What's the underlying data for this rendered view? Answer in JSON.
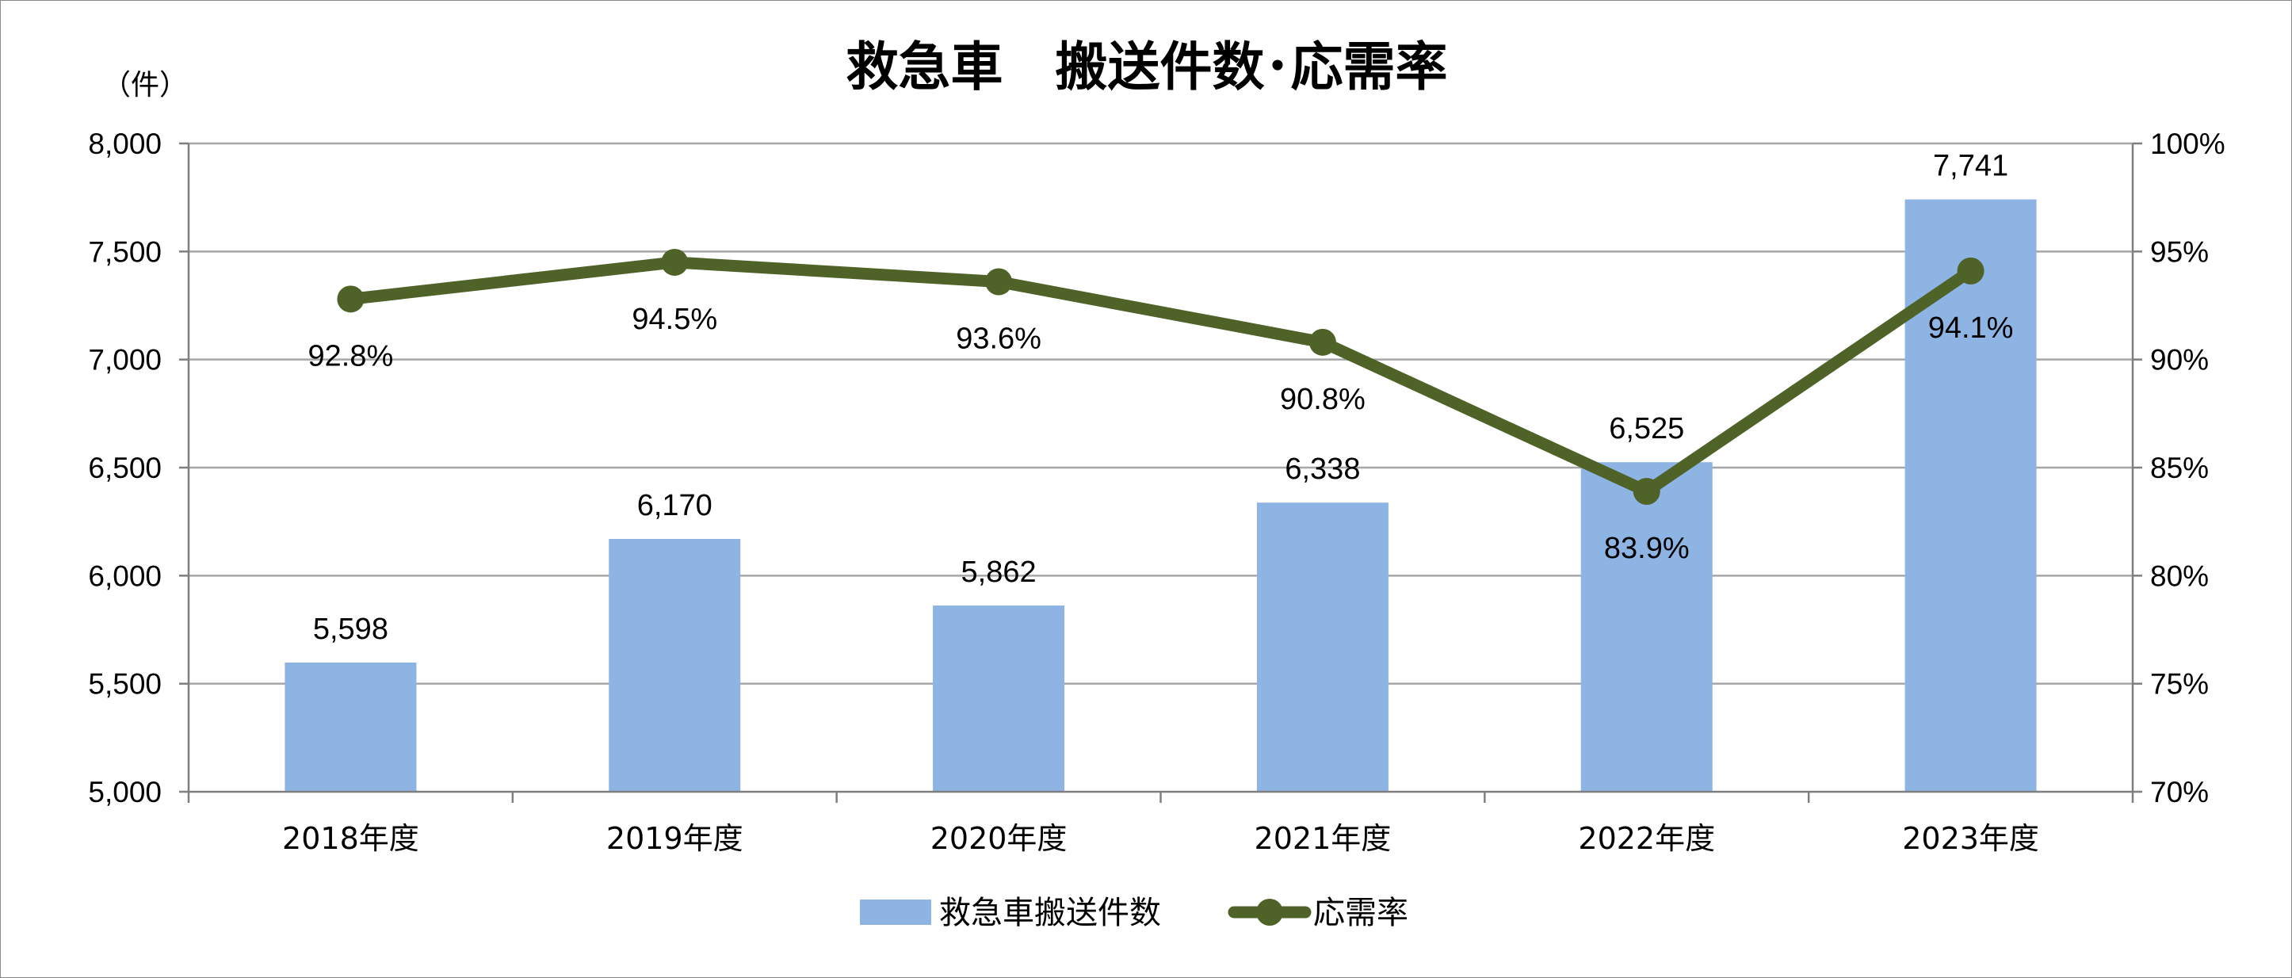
{
  "chart_data": {
    "type": "bar",
    "title": "救急車　搬送件数･応需率",
    "y_unit": "（件）",
    "categories": [
      "2018年度",
      "2019年度",
      "2020年度",
      "2021年度",
      "2022年度",
      "2023年度"
    ],
    "series": [
      {
        "name": "救急車搬送件数",
        "type": "bar",
        "axis": "left",
        "color": "#8eb4e3",
        "values": [
          5598,
          6170,
          5862,
          6338,
          6525,
          7741
        ],
        "labels": [
          "5,598",
          "6,170",
          "5,862",
          "6,338",
          "6,525",
          "7,741"
        ]
      },
      {
        "name": "応需率",
        "type": "line",
        "axis": "right",
        "color": "#4f6228",
        "values": [
          92.8,
          94.5,
          93.6,
          90.8,
          83.9,
          94.1
        ],
        "labels": [
          "92.8%",
          "94.5%",
          "93.6%",
          "90.8%",
          "83.9%",
          "94.1%"
        ]
      }
    ],
    "y_left": {
      "min": 5000,
      "max": 8000,
      "ticks": [
        5000,
        5500,
        6000,
        6500,
        7000,
        7500,
        8000
      ],
      "tick_labels": [
        "5,000",
        "5,500",
        "6,000",
        "6,500",
        "7,000",
        "7,500",
        "8,000"
      ]
    },
    "y_right": {
      "min": 70,
      "max": 100,
      "ticks": [
        70,
        75,
        80,
        85,
        90,
        95,
        100
      ],
      "tick_labels": [
        "70%",
        "75%",
        "80%",
        "85%",
        "90%",
        "95%",
        "100%"
      ]
    },
    "grid": true,
    "legend_position": "bottom"
  }
}
